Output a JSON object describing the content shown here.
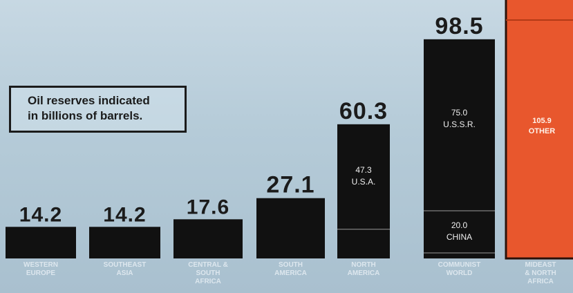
{
  "note": {
    "line1": "Oil reserves indicated",
    "line2": "in billions of barrels."
  },
  "colors": {
    "bar": "#111111",
    "highlight": "#e8572d",
    "text": "#1b1b1b",
    "label": "#dde7ee",
    "inner_label_dark": "#f0f0f0",
    "inner_label_orange": "#fff3ea",
    "divider": "#9a9a9a"
  },
  "chart_data": {
    "type": "bar",
    "title": "",
    "xlabel": "",
    "ylabel": "",
    "categories": [
      "WESTERN EUROPE",
      "SOUTHEAST ASIA",
      "CENTRAL & SOUTH AFRICA",
      "SOUTH AMERICA",
      "NORTH AMERICA",
      "COMMUNIST WORLD",
      "MIDEAST & NORTH AFRICA"
    ],
    "label_lines": [
      [
        "WESTERN",
        "EUROPE"
      ],
      [
        "SOUTHEAST",
        "ASIA"
      ],
      [
        "CENTRAL &",
        "SOUTH",
        "AFRICA"
      ],
      [
        "SOUTH",
        "AMERICA"
      ],
      [
        "NORTH",
        "AMERICA"
      ],
      [
        "COMMUNIST",
        "WORLD"
      ],
      [
        "MIDEAST",
        "& NORTH",
        "AFRICA"
      ]
    ],
    "value_labels": [
      "14.2",
      "14.2",
      "17.6",
      "27.1",
      "60.3",
      "98.5",
      null
    ],
    "values": [
      14.2,
      14.2,
      17.6,
      27.1,
      60.3,
      98.5,
      null
    ],
    "segments": {
      "NORTH AMERICA": [
        {
          "label_lines": [
            "47.3",
            "U.S.A."
          ],
          "value": 47.3
        }
      ],
      "COMMUNIST WORLD": [
        {
          "label_lines": [
            "75.0",
            "U.S.S.R."
          ],
          "value": 75.0
        },
        {
          "label_lines": [
            "20.0",
            "CHINA"
          ],
          "value": 20.0
        }
      ],
      "MIDEAST & NORTH AFRICA": [
        {
          "label_lines": [
            "105.9",
            "OTHER"
          ],
          "value": 105.9
        }
      ]
    },
    "highlight_category": "MIDEAST & NORTH AFRICA"
  }
}
